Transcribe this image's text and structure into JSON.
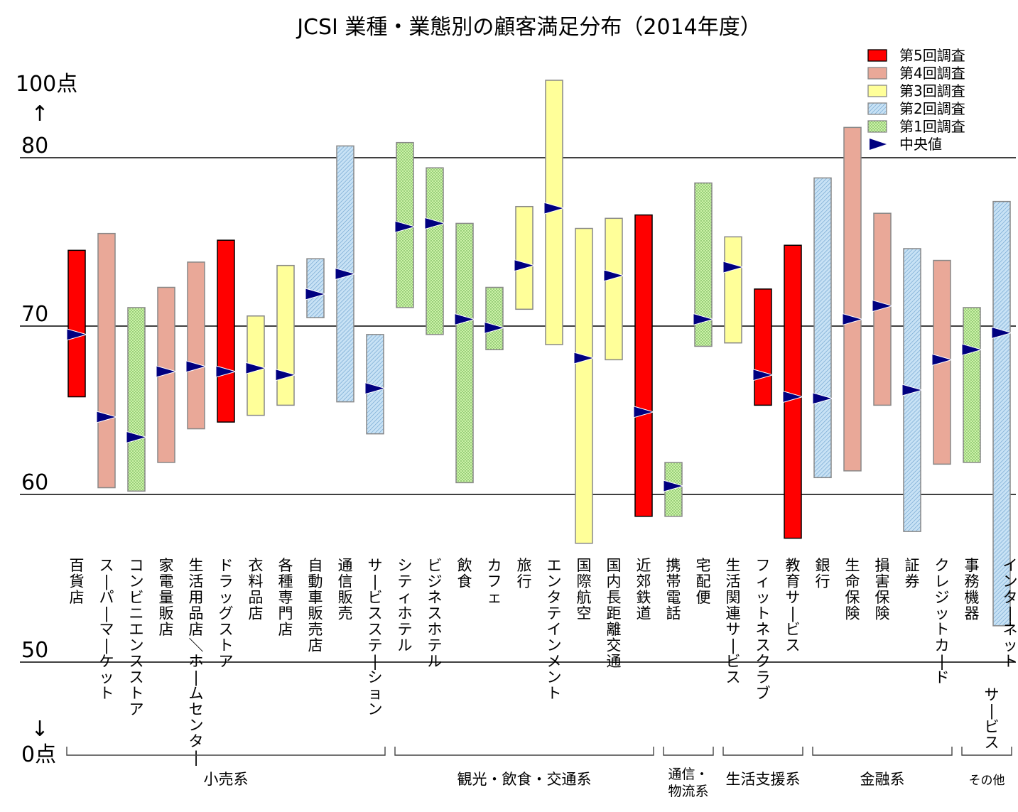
{
  "chart_data": {
    "type": "floating-bar",
    "title": "JCSI 業種・業態別の顧客満足分布（2014年度）",
    "y_axis": {
      "ticks": [
        {
          "value": 80,
          "label": "80"
        },
        {
          "value": 70,
          "label": "70"
        },
        {
          "value": 60,
          "label": "60"
        },
        {
          "value": 50,
          "label": "50"
        }
      ],
      "top_label": "100点",
      "bottom_label": "0点",
      "up_arrow": "↑",
      "down_arrow": "↓",
      "scale_break": true,
      "range_shown": [
        50,
        100
      ]
    },
    "legend": {
      "placement": "top-right",
      "items": [
        {
          "key": "s5",
          "label": "第5回調査",
          "fill": "#ff0000",
          "pattern": "solid"
        },
        {
          "key": "s4",
          "label": "第4回調査",
          "fill": "#e9a898",
          "pattern": "solid"
        },
        {
          "key": "s3",
          "label": "第3回調査",
          "fill": "#ffff99",
          "pattern": "solid"
        },
        {
          "key": "s2",
          "label": "第2回調査",
          "fill": "#b8d8f0",
          "pattern": "hatch"
        },
        {
          "key": "s1",
          "label": "第1回調査",
          "fill": "#c6f0a0",
          "pattern": "dots"
        },
        {
          "key": "median",
          "label": "中央値",
          "fill": "#000080",
          "pattern": "marker"
        }
      ]
    },
    "categories": [
      {
        "name": "百貨店",
        "survey": "s5",
        "low": 65.8,
        "high": 74.5,
        "median": 69.5
      },
      {
        "name": "スーパーマーケット",
        "survey": "s4",
        "low": 60.4,
        "high": 75.5,
        "median": 64.6
      },
      {
        "name": "コンビニエンスストア",
        "survey": "s1",
        "low": 60.2,
        "high": 71.1,
        "median": 63.4
      },
      {
        "name": "家電量販店",
        "survey": "s4",
        "low": 61.9,
        "high": 72.3,
        "median": 67.3
      },
      {
        "name": "生活用品店／ホームセンター",
        "survey": "s4",
        "low": 63.9,
        "high": 73.8,
        "median": 67.6
      },
      {
        "name": "ドラッグストア",
        "survey": "s5",
        "low": 64.3,
        "high": 75.1,
        "median": 67.3
      },
      {
        "name": "衣料品店",
        "survey": "s3",
        "low": 64.7,
        "high": 70.6,
        "median": 67.5
      },
      {
        "name": "各種専門店",
        "survey": "s3",
        "low": 65.3,
        "high": 73.6,
        "median": 67.1
      },
      {
        "name": "自動車販売店",
        "survey": "s2",
        "low": 70.5,
        "high": 74.0,
        "median": 71.9
      },
      {
        "name": "通信販売",
        "survey": "s2",
        "low": 65.5,
        "high": 80.7,
        "median": 73.1
      },
      {
        "name": "サービスステーション",
        "survey": "s2",
        "low": 63.6,
        "high": 69.5,
        "median": 66.3
      },
      {
        "name": "シティホテル",
        "survey": "s1",
        "low": 71.1,
        "high": 80.9,
        "median": 75.9
      },
      {
        "name": "ビジネスホテル",
        "survey": "s1",
        "low": 69.5,
        "high": 79.4,
        "median": 76.1
      },
      {
        "name": "飲食",
        "survey": "s1",
        "low": 60.7,
        "high": 76.1,
        "median": 70.4
      },
      {
        "name": "カフェ",
        "survey": "s1",
        "low": 68.6,
        "high": 72.3,
        "median": 69.9
      },
      {
        "name": "旅行",
        "survey": "s3",
        "low": 71.0,
        "high": 77.1,
        "median": 73.6
      },
      {
        "name": "エンタテインメント",
        "survey": "s3",
        "low": 68.9,
        "high": 84.6,
        "median": 77.0
      },
      {
        "name": "国際航空",
        "survey": "s3",
        "low": 57.1,
        "high": 75.8,
        "median": 68.1
      },
      {
        "name": "国内長距離交通",
        "survey": "s3",
        "low": 68.0,
        "high": 76.4,
        "median": 73.0
      },
      {
        "name": "近郊鉄道",
        "survey": "s5",
        "low": 58.7,
        "high": 76.6,
        "median": 64.9
      },
      {
        "name": "携帯電話",
        "survey": "s1",
        "low": 58.7,
        "high": 61.9,
        "median": 60.5
      },
      {
        "name": "宅配便",
        "survey": "s1",
        "low": 68.8,
        "high": 78.5,
        "median": 70.4
      },
      {
        "name": "生活関連サービス",
        "survey": "s3",
        "low": 69.0,
        "high": 75.3,
        "median": 73.5
      },
      {
        "name": "フィットネスクラブ",
        "survey": "s5",
        "low": 65.3,
        "high": 72.2,
        "median": 67.1
      },
      {
        "name": "教育サービス",
        "survey": "s5",
        "low": 57.4,
        "high": 74.8,
        "median": 65.8
      },
      {
        "name": "銀行",
        "survey": "s2",
        "low": 61.0,
        "high": 78.8,
        "median": 65.7
      },
      {
        "name": "生命保険",
        "survey": "s4",
        "low": 61.4,
        "high": 81.8,
        "median": 70.4
      },
      {
        "name": "損害保険",
        "survey": "s4",
        "low": 65.3,
        "high": 76.7,
        "median": 71.2
      },
      {
        "name": "証券",
        "survey": "s2",
        "low": 57.8,
        "high": 74.6,
        "median": 66.2
      },
      {
        "name": "クレジットカード",
        "survey": "s4",
        "low": 61.8,
        "high": 73.9,
        "median": 68.0
      },
      {
        "name": "事務機器",
        "survey": "s1",
        "low": 61.9,
        "high": 71.1,
        "median": 68.6
      },
      {
        "name": "インターネットサービス",
        "survey": "s2",
        "low": 52.2,
        "high": 77.4,
        "median": 69.6
      }
    ],
    "groups": [
      {
        "label": "小売系",
        "first": 0,
        "last": 10
      },
      {
        "label": "観光・飲食・交通系",
        "first": 11,
        "last": 19
      },
      {
        "label": "通信・物流系",
        "first": 20,
        "last": 21
      },
      {
        "label": "生活支援系",
        "first": 22,
        "last": 24
      },
      {
        "label": "金融系",
        "first": 25,
        "last": 29
      },
      {
        "label": "その他",
        "first": 30,
        "last": 31
      }
    ]
  }
}
